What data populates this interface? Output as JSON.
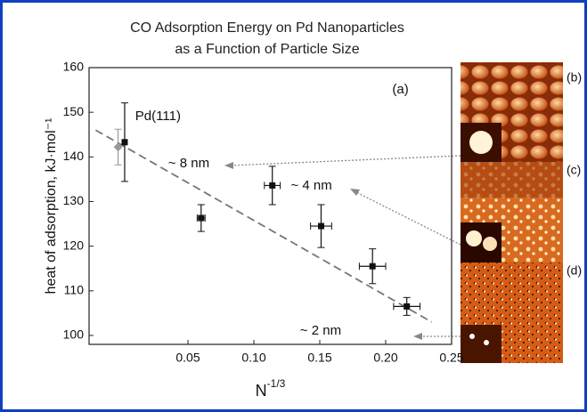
{
  "chart_data": {
    "type": "scatter",
    "title": [
      "CO Adsorption Energy on Pd Nanoparticles",
      "as a Function of Particle Size"
    ],
    "x_label": {
      "base": "N",
      "sup": "-1/3"
    },
    "y_label": "heat of adsorption, kJ·mol⁻¹",
    "xlim": [
      -0.025,
      0.25
    ],
    "ylim": [
      98,
      160
    ],
    "xticks": [
      0.05,
      {
        "value": 0.1,
        "label": "0.10"
      },
      0.15,
      {
        "value": 0.2,
        "label": "0.20"
      },
      0.25
    ],
    "yticks": [
      100,
      110,
      120,
      130,
      140,
      150,
      160
    ],
    "series": [
      {
        "color": "#111111",
        "marker": "square",
        "x": [
          0.002,
          0.06,
          0.114,
          0.151,
          0.19,
          0.216
        ],
        "values": [
          143.3,
          126.3,
          133.6,
          124.5,
          115.5,
          106.5
        ],
        "y_errors": [
          8.8,
          3,
          4.3,
          4.8,
          3.9,
          2
        ],
        "x_errors": [
          0,
          0.003,
          0.006,
          0.008,
          0.01,
          0.01
        ]
      },
      {
        "color": "#999999",
        "marker": "diamond",
        "x": [
          -0.003
        ],
        "values": [
          142.2
        ],
        "y_errors": [
          4
        ],
        "x_errors": [
          0
        ]
      }
    ],
    "fit_line": {
      "x": [
        -0.02,
        0.235
      ],
      "values": [
        146,
        103
      ],
      "color": "#777777"
    },
    "annotations": [
      {
        "text": "Pd(111)",
        "x": 0.01,
        "y": 149
      },
      {
        "text": "~ 8 nm",
        "x": 0.035,
        "y": 138.5
      },
      {
        "text": "~ 4 nm",
        "x": 0.128,
        "y": 133.5
      },
      {
        "text": "~ 2 nm",
        "x": 0.135,
        "y": 101
      },
      {
        "text": "(a)",
        "x": 0.205,
        "y": 155
      }
    ],
    "panel_labels": [
      "(b)",
      "(c)",
      "(d)"
    ]
  }
}
